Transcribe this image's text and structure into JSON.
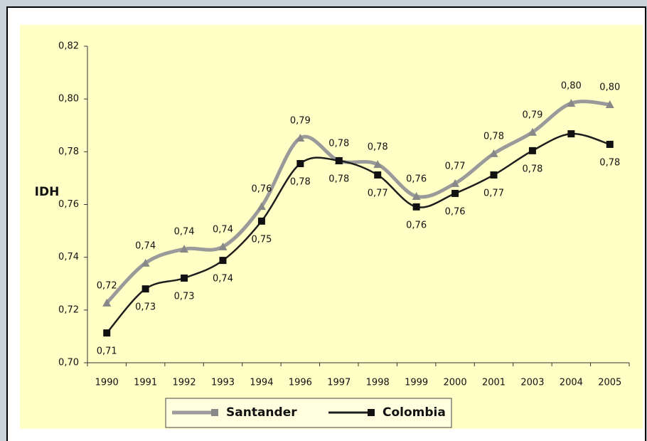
{
  "chart_data": {
    "type": "line",
    "y_label": "IDH",
    "categories": [
      "1990",
      "1991",
      "1992",
      "1993",
      "1994",
      "1996",
      "1997",
      "1998",
      "1999",
      "2000",
      "2001",
      "2003",
      "2004",
      "2005"
    ],
    "ylim": [
      0.7,
      0.82
    ],
    "yticks": [
      {
        "value": 0.7,
        "label": "0,70"
      },
      {
        "value": 0.72,
        "label": "0,72"
      },
      {
        "value": 0.74,
        "label": "0,74"
      },
      {
        "value": 0.76,
        "label": "0,76"
      },
      {
        "value": 0.78,
        "label": "0,78"
      },
      {
        "value": 0.8,
        "label": "0,80"
      },
      {
        "value": 0.82,
        "label": "0,82"
      }
    ],
    "series": [
      {
        "name": "Santander",
        "color": "#9a9a9a",
        "marker": "triangle",
        "values": [
          0.7227,
          0.7378,
          0.7431,
          0.744,
          0.7593,
          0.7852,
          0.7766,
          0.7752,
          0.7631,
          0.768,
          0.7793,
          0.7874,
          0.7984,
          0.7979
        ],
        "value_labels": [
          "0,72",
          "0,74",
          "0,74",
          "0,74",
          "0,76",
          "0,79",
          "0,78",
          "0,78",
          "0,76",
          "0,77",
          "0,78",
          "0,79",
          "0,80",
          "0,80"
        ]
      },
      {
        "name": "Colombia",
        "color": "#1e1e1e",
        "marker": "square",
        "values": [
          0.7113,
          0.728,
          0.7321,
          0.7388,
          0.7537,
          0.7755,
          0.7766,
          0.7712,
          0.7591,
          0.7642,
          0.7712,
          0.7804,
          0.7868,
          0.7828
        ],
        "value_labels": [
          "0,71",
          "0,73",
          "0,73",
          "0,74",
          "0,75",
          "0,78",
          "0,78",
          "0,77",
          "0,76",
          "0,76",
          "0,77",
          "0,78",
          null,
          "0,78"
        ]
      }
    ]
  }
}
